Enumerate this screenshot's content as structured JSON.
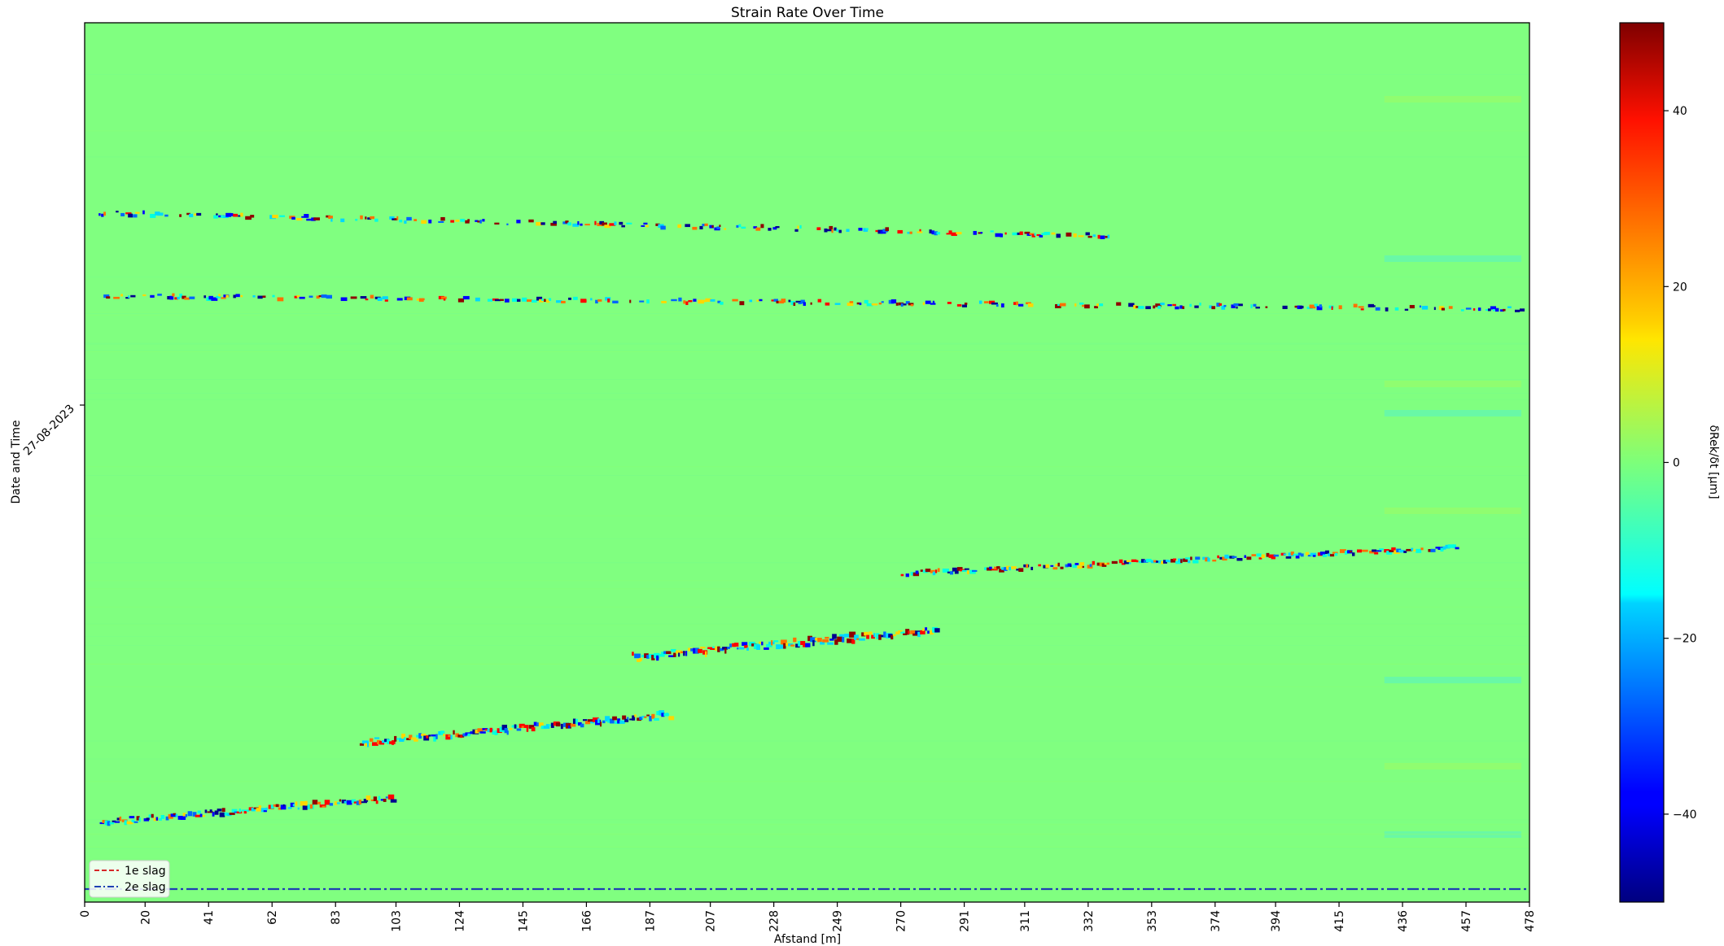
{
  "chart_data": {
    "type": "heatmap",
    "title": "Strain Rate Over Time",
    "xlabel": "Afstand [m]",
    "ylabel": "Date and Time",
    "xlim": [
      0,
      478
    ],
    "x_ticks": [
      0,
      20,
      41,
      62,
      83,
      103,
      124,
      145,
      166,
      187,
      207,
      228,
      249,
      270,
      291,
      311,
      332,
      353,
      374,
      394,
      415,
      436,
      457,
      478
    ],
    "y_ticks": [
      "27-08-2023"
    ],
    "colorscale": "jet",
    "colorbar": {
      "label": "δRek/δt [µm]",
      "range": [
        -50,
        50
      ],
      "ticks": [
        -40,
        -20,
        0,
        20,
        40
      ]
    },
    "legend": {
      "placement": "lower-left",
      "entries": [
        {
          "label": "1e slag",
          "color": "#d62728",
          "style": "dashed"
        },
        {
          "label": "2e slag",
          "color": "#1f3fb4",
          "style": "dashdot"
        }
      ]
    },
    "background_color": "#80ff80",
    "events": [
      {
        "name": "event-upper-1",
        "x_start": 3,
        "x_end": 340,
        "intensity": "medium"
      },
      {
        "name": "event-upper-2",
        "x_start": 3,
        "x_end": 478,
        "intensity": "medium"
      },
      {
        "name": "event-lower-1",
        "x_start": 5,
        "x_end": 102,
        "intensity": "high"
      },
      {
        "name": "event-lower-2",
        "x_start": 91,
        "x_end": 194,
        "intensity": "high"
      },
      {
        "name": "event-lower-3",
        "x_start": 181,
        "x_end": 282,
        "intensity": "high"
      },
      {
        "name": "event-lower-4",
        "x_start": 270,
        "x_end": 455,
        "intensity": "medium"
      }
    ],
    "reference_line": {
      "name": "2e slag",
      "color": "#1f3fb4"
    }
  }
}
